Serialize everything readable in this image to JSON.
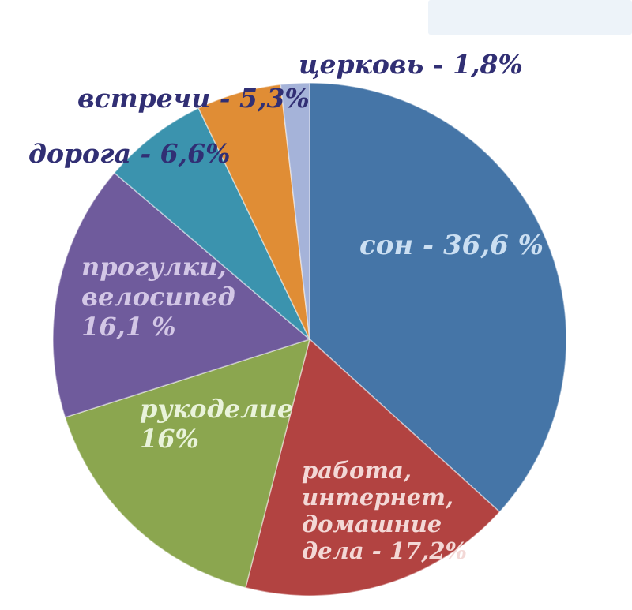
{
  "chart_data": {
    "type": "pie",
    "title": "",
    "start_angle_deg": 0,
    "direction": "clockwise",
    "total_percent": 99.6,
    "legend": "none",
    "slices": [
      {
        "key": "sleep",
        "label": "сон",
        "value": 36.6,
        "display_label": "сон - 36,6 %",
        "color": "#4575a7",
        "label_color": "#cbdff2",
        "label_placement": "inside"
      },
      {
        "key": "work",
        "label": "работа, интернет, домашние дела",
        "value": 17.2,
        "display_label": "работа,\nинтернет,\nдомашние\nдела - 17,2%",
        "color": "#b24341",
        "label_color": "#f3d8d6",
        "label_placement": "inside"
      },
      {
        "key": "crafts",
        "label": "рукоделие",
        "value": 16.0,
        "display_label": "рукоделие\n16%",
        "color": "#8ba64f",
        "label_color": "#e9f3da",
        "label_placement": "inside"
      },
      {
        "key": "walks",
        "label": "прогулки, велосипед",
        "value": 16.1,
        "display_label": "прогулки,\nвелосипед\n16,1 %",
        "color": "#6f5b9c",
        "label_color": "#d3c7e6",
        "label_placement": "inside"
      },
      {
        "key": "road",
        "label": "дорога",
        "value": 6.6,
        "display_label": "дорога - 6,6%",
        "color": "#3b93ae",
        "label_color": "#312f74",
        "label_placement": "outside"
      },
      {
        "key": "meetings",
        "label": "встречи",
        "value": 5.3,
        "display_label": "встречи - 5,3%",
        "color": "#e08d35",
        "label_color": "#312f74",
        "label_placement": "outside"
      },
      {
        "key": "church",
        "label": "церковь",
        "value": 1.8,
        "display_label": "церковь - 1,8%",
        "color": "#a5b3d9",
        "label_color": "#312f74",
        "label_placement": "outside"
      }
    ]
  }
}
